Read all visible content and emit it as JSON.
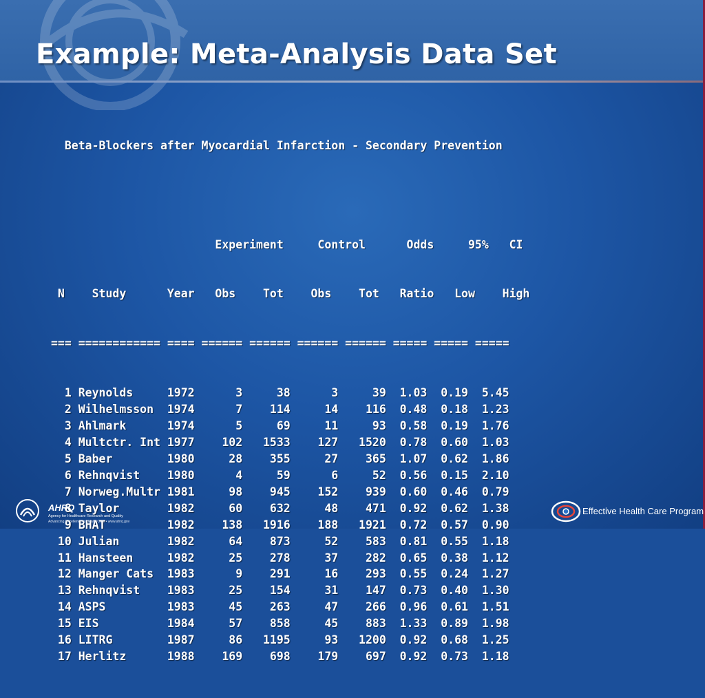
{
  "slide": {
    "title": "Example: Meta-Analysis Data Set"
  },
  "table": {
    "caption": "Beta-Blockers after Myocardial Infarction - Secondary Prevention",
    "group_headers": {
      "experiment": "Experiment",
      "control": "Control",
      "odds": "Odds",
      "ci_pct": "95%",
      "ci": "CI"
    },
    "columns": [
      "N",
      "Study",
      "Year",
      "Obs",
      "Tot",
      "Obs",
      "Tot",
      "Ratio",
      "Low",
      "High"
    ],
    "rows": [
      [
        "1",
        "Reynolds",
        "1972",
        "3",
        "38",
        "3",
        "39",
        "1.03",
        "0.19",
        "5.45"
      ],
      [
        "2",
        "Wilhelmsson",
        "1974",
        "7",
        "114",
        "14",
        "116",
        "0.48",
        "0.18",
        "1.23"
      ],
      [
        "3",
        "Ahlmark",
        "1974",
        "5",
        "69",
        "11",
        "93",
        "0.58",
        "0.19",
        "1.76"
      ],
      [
        "4",
        "Multctr. Int",
        "1977",
        "102",
        "1533",
        "127",
        "1520",
        "0.78",
        "0.60",
        "1.03"
      ],
      [
        "5",
        "Baber",
        "1980",
        "28",
        "355",
        "27",
        "365",
        "1.07",
        "0.62",
        "1.86"
      ],
      [
        "6",
        "Rehnqvist",
        "1980",
        "4",
        "59",
        "6",
        "52",
        "0.56",
        "0.15",
        "2.10"
      ],
      [
        "7",
        "Norweg.Multr",
        "1981",
        "98",
        "945",
        "152",
        "939",
        "0.60",
        "0.46",
        "0.79"
      ],
      [
        "8",
        "Taylor",
        "1982",
        "60",
        "632",
        "48",
        "471",
        "0.92",
        "0.62",
        "1.38"
      ],
      [
        "9",
        "BHAT",
        "1982",
        "138",
        "1916",
        "188",
        "1921",
        "0.72",
        "0.57",
        "0.90"
      ],
      [
        "10",
        "Julian",
        "1982",
        "64",
        "873",
        "52",
        "583",
        "0.81",
        "0.55",
        "1.18"
      ],
      [
        "11",
        "Hansteen",
        "1982",
        "25",
        "278",
        "37",
        "282",
        "0.65",
        "0.38",
        "1.12"
      ],
      [
        "12",
        "Manger Cats",
        "1983",
        "9",
        "291",
        "16",
        "293",
        "0.55",
        "0.24",
        "1.27"
      ],
      [
        "13",
        "Rehnqvist",
        "1983",
        "25",
        "154",
        "31",
        "147",
        "0.73",
        "0.40",
        "1.30"
      ],
      [
        "14",
        "ASPS",
        "1983",
        "45",
        "263",
        "47",
        "266",
        "0.96",
        "0.61",
        "1.51"
      ],
      [
        "15",
        "EIS",
        "1984",
        "57",
        "858",
        "45",
        "883",
        "1.33",
        "0.89",
        "1.98"
      ],
      [
        "16",
        "LITRG",
        "1987",
        "86",
        "1195",
        "93",
        "1200",
        "0.92",
        "0.68",
        "1.25"
      ],
      [
        "17",
        "Herlitz",
        "1988",
        "169",
        "698",
        "179",
        "697",
        "0.92",
        "0.73",
        "1.18"
      ]
    ]
  },
  "footer": {
    "ahrq_logo_text": "AHRQ",
    "ahrq_name": "Agency for Healthcare Research and Quality",
    "ahrq_tagline": "Advancing Excellence in Health Care • www.ahrq.gov",
    "program_name": "Effective Health Care Program"
  },
  "icons": {
    "hhs": "hhs-eagle-logo",
    "ehc": "effective-health-care-logo",
    "watermark": "swirl-watermark"
  },
  "colors": {
    "background": "#1d56a5",
    "header": "#3a6eb0",
    "text": "#ffffff",
    "edge_accent": "#8a1f3f"
  }
}
